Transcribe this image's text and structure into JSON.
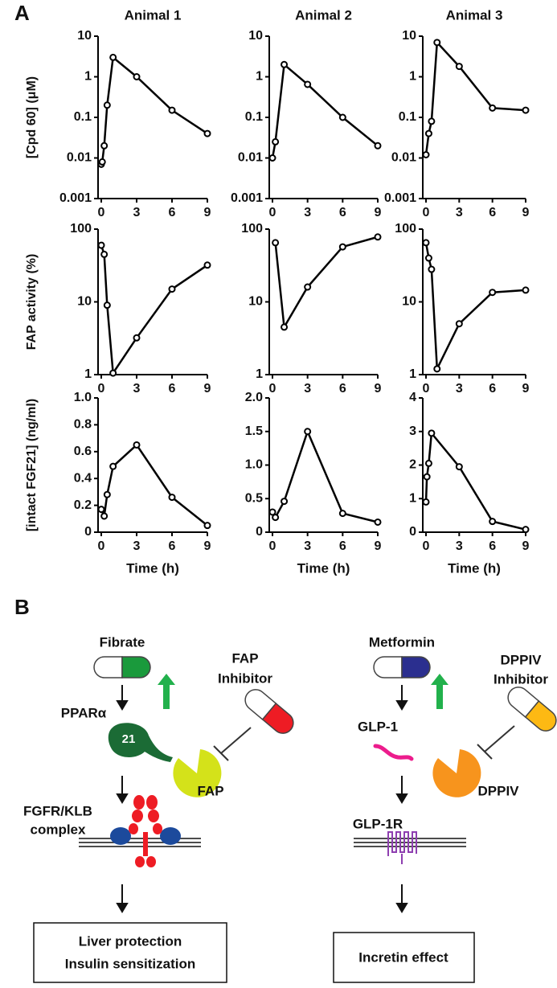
{
  "panel_labels": [
    "A",
    "B"
  ],
  "chart_data": [
    {
      "type": "line",
      "title": "Animal 1",
      "y_label": "[Cpd 60] (μM)",
      "log": true,
      "color": "#000000",
      "x": [
        0,
        0.083,
        0.25,
        0.5,
        1,
        3,
        6,
        9
      ],
      "values": [
        0.007,
        0.008,
        0.02,
        0.2,
        3,
        1,
        0.15,
        0.04
      ],
      "xlim": [
        0,
        9
      ],
      "xticks": [
        0,
        3,
        6,
        9
      ],
      "ylim": [
        0.001,
        10
      ],
      "yticks": [
        0.001,
        0.01,
        0.1,
        1,
        10
      ]
    },
    {
      "type": "line",
      "title": "Animal 2",
      "log": true,
      "color": "#000000",
      "x": [
        0,
        0.25,
        1,
        3,
        6,
        9
      ],
      "values": [
        0.01,
        0.025,
        2,
        0.65,
        0.1,
        0.02
      ],
      "xlim": [
        0,
        9
      ],
      "xticks": [
        0,
        3,
        6,
        9
      ],
      "ylim": [
        0.001,
        10
      ],
      "yticks": [
        0.001,
        0.01,
        0.1,
        1,
        10
      ]
    },
    {
      "type": "line",
      "title": "Animal 3",
      "log": true,
      "color": "#000000",
      "x": [
        0,
        0.25,
        0.5,
        1,
        3,
        6,
        9
      ],
      "values": [
        0.012,
        0.04,
        0.08,
        7,
        1.8,
        0.17,
        0.15
      ],
      "xlim": [
        0,
        9
      ],
      "xticks": [
        0,
        3,
        6,
        9
      ],
      "ylim": [
        0.001,
        10
      ],
      "yticks": [
        0.001,
        0.01,
        0.1,
        1,
        10
      ]
    },
    {
      "type": "line",
      "y_label": "FAP activity (%)",
      "log": true,
      "color": "#000000",
      "x": [
        0,
        0.25,
        0.5,
        1,
        3,
        6,
        9
      ],
      "values": [
        60,
        45,
        9,
        1.05,
        3.2,
        15,
        32
      ],
      "xlim": [
        0,
        9
      ],
      "xticks": [
        0,
        3,
        6,
        9
      ],
      "ylim": [
        1,
        100
      ],
      "yticks": [
        1,
        10,
        100
      ]
    },
    {
      "type": "line",
      "log": true,
      "color": "#000000",
      "x": [
        0.25,
        1,
        3,
        6,
        9
      ],
      "values": [
        65,
        4.5,
        16,
        57,
        78
      ],
      "xlim": [
        0,
        9
      ],
      "xticks": [
        0,
        3,
        6,
        9
      ],
      "ylim": [
        1,
        100
      ],
      "yticks": [
        1,
        10,
        100
      ]
    },
    {
      "type": "line",
      "log": true,
      "color": "#000000",
      "x": [
        0,
        0.25,
        0.5,
        1,
        3,
        6,
        9
      ],
      "values": [
        65,
        40,
        28,
        1.2,
        5,
        13.5,
        14.5
      ],
      "xlim": [
        0,
        9
      ],
      "xticks": [
        0,
        3,
        6,
        9
      ],
      "ylim": [
        1,
        100
      ],
      "yticks": [
        1,
        10,
        100
      ]
    },
    {
      "type": "line",
      "y_label": "[intact FGF21] (ng/ml)",
      "x_label": "Time (h)",
      "log": false,
      "color": "#000000",
      "x": [
        0,
        0.25,
        0.5,
        1,
        3,
        6,
        9
      ],
      "values": [
        0.17,
        0.12,
        0.28,
        0.49,
        0.65,
        0.26,
        0.05
      ],
      "xlim": [
        0,
        9
      ],
      "xticks": [
        0,
        3,
        6,
        9
      ],
      "ylim": [
        0,
        1
      ],
      "yticks": [
        0,
        0.2,
        0.4,
        0.6,
        0.8,
        {
          "value": 1,
          "label": "1.0"
        }
      ]
    },
    {
      "type": "line",
      "x_label": "Time (h)",
      "log": false,
      "color": "#000000",
      "x": [
        0,
        0.25,
        1,
        3,
        6,
        9
      ],
      "values": [
        0.3,
        0.22,
        0.46,
        1.5,
        0.28,
        0.15
      ],
      "xlim": [
        0,
        9
      ],
      "xticks": [
        0,
        3,
        6,
        9
      ],
      "ylim": [
        0,
        2
      ],
      "yticks": [
        0,
        0.5,
        {
          "value": 1,
          "label": "1.0"
        },
        1.5,
        {
          "value": 2,
          "label": "2.0"
        }
      ]
    },
    {
      "type": "line",
      "x_label": "Time (h)",
      "log": false,
      "color": "#000000",
      "x": [
        0,
        0.083,
        0.25,
        0.5,
        3,
        6,
        9
      ],
      "values": [
        0.9,
        1.65,
        2.05,
        2.95,
        1.95,
        0.32,
        0.08
      ],
      "xlim": [
        0,
        9
      ],
      "xticks": [
        0,
        3,
        6,
        9
      ],
      "ylim": [
        0,
        4
      ],
      "yticks": [
        0,
        1,
        2,
        3,
        4
      ]
    }
  ],
  "diagram": {
    "left": {
      "drug": "Fibrate",
      "receptor_step": "PPARα",
      "inhibitor": [
        "FAP",
        "Inhibitor"
      ],
      "hormone": "21",
      "enzyme": "FAP",
      "receptor": [
        "FGFR/KLB",
        "complex"
      ],
      "effect": [
        "Liver protection",
        "Insulin sensitization"
      ]
    },
    "right": {
      "drug": "Metformin",
      "inhibitor": [
        "DPPIV",
        "Inhibitor"
      ],
      "hormone": "GLP-1",
      "enzyme": "DPPIV",
      "receptor": "GLP-1R",
      "effect": "Incretin effect"
    }
  }
}
